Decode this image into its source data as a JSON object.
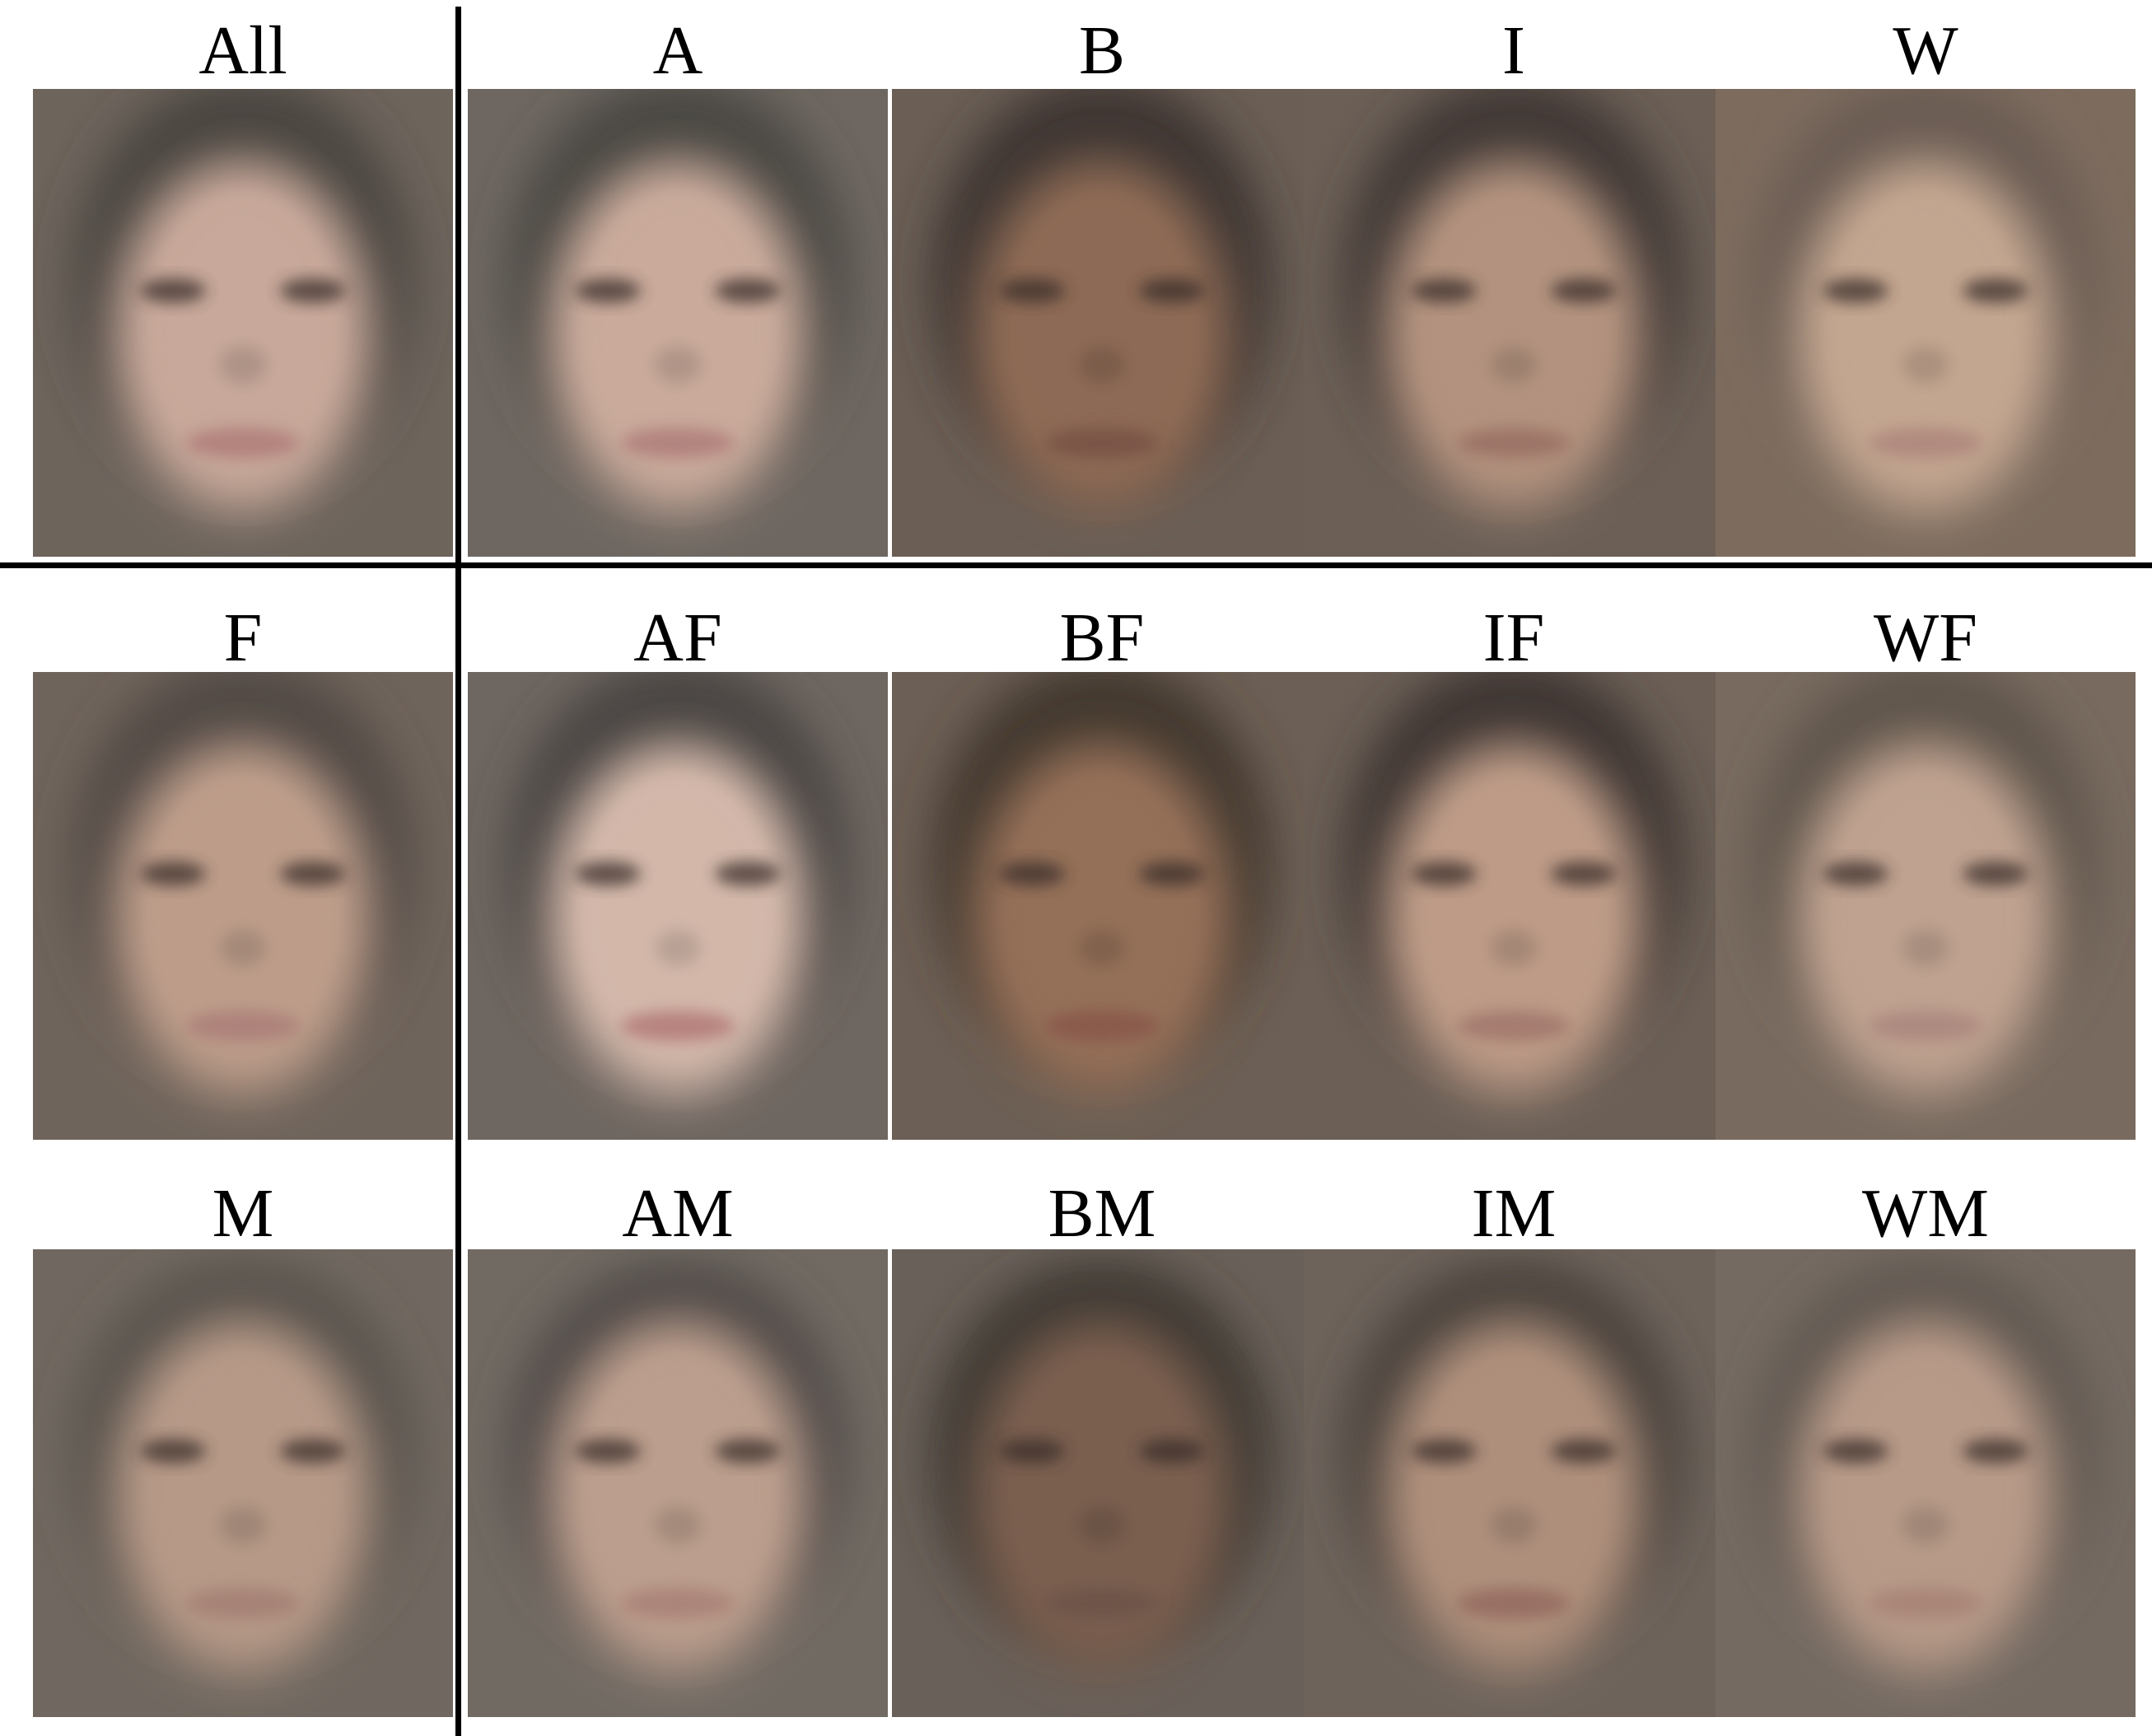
{
  "rows": [
    [
      {
        "label": "All",
        "skin": "#c7a89a",
        "bg": "#6d645c",
        "hair": "#4a4541",
        "lip": "#b3837e"
      },
      {
        "label": "A",
        "skin": "#c9aa9b",
        "bg": "#6e6761",
        "hair": "#4a4643",
        "lip": "#b3847f"
      },
      {
        "label": "B",
        "skin": "#8d6a55",
        "bg": "#6a5e55",
        "hair": "#3e3631",
        "lip": "#7a5547"
      },
      {
        "label": "I",
        "skin": "#b3937f",
        "bg": "#6b5f56",
        "hair": "#3f3935",
        "lip": "#9d7468"
      },
      {
        "label": "W",
        "skin": "#c3a690",
        "bg": "#7d6c5e",
        "hair": "#6a5c52",
        "lip": "#b08a7f"
      }
    ],
    [
      {
        "label": "F",
        "skin": "#bd9d8a",
        "bg": "#6f645b",
        "hair": "#514a44",
        "lip": "#ad827a"
      },
      {
        "label": "AF",
        "skin": "#d3b8aa",
        "bg": "#6e6660",
        "hair": "#4a4542",
        "lip": "#b7837f"
      },
      {
        "label": "BF",
        "skin": "#946f58",
        "bg": "#6c5f55",
        "hair": "#42382f",
        "lip": "#8a5a4c"
      },
      {
        "label": "IF",
        "skin": "#bd9b87",
        "bg": "#6b5f56",
        "hair": "#3c3531",
        "lip": "#a57b70"
      },
      {
        "label": "WF",
        "skin": "#bfa290",
        "bg": "#786a5f",
        "hair": "#5f544c",
        "lip": "#ad8a80"
      }
    ],
    [
      {
        "label": "M",
        "skin": "#b69987",
        "bg": "#706860",
        "hair": "#57514b",
        "lip": "#a68276"
      },
      {
        "label": "AM",
        "skin": "#bb9e8d",
        "bg": "#716a63",
        "hair": "#4f4a46",
        "lip": "#ab8479"
      },
      {
        "label": "BM",
        "skin": "#7a5f50",
        "bg": "#696059",
        "hair": "#3d3733",
        "lip": "#6e5448"
      },
      {
        "label": "IM",
        "skin": "#ae8f7c",
        "bg": "#6d635b",
        "hair": "#463f3a",
        "lip": "#987063"
      },
      {
        "label": "WM",
        "skin": "#b79a88",
        "bg": "#746a62",
        "hair": "#5e5650",
        "lip": "#a98578"
      }
    ]
  ]
}
